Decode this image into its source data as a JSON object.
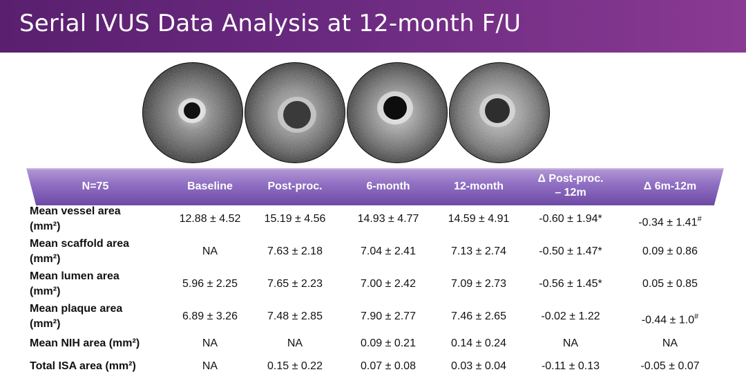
{
  "slide": {
    "title": "Serial IVUS Data Analysis at 12-month F/U"
  },
  "images": [
    {
      "name": "ivus-baseline-image"
    },
    {
      "name": "ivus-post-proc-image"
    },
    {
      "name": "ivus-6-month-image"
    },
    {
      "name": "ivus-12-month-image"
    }
  ],
  "table": {
    "headers": {
      "n": "N=75",
      "baseline": "Baseline",
      "post": "Post-proc.",
      "m6": "6-month",
      "m12": "12-month",
      "delta_post_1": "Δ Post-proc.",
      "delta_post_2": "– 12m",
      "delta_6m": "Δ  6m-12m"
    },
    "rows": [
      {
        "label1": "Mean vessel area",
        "label2": "(mm²)",
        "values": [
          "12.88 ±  4.52",
          "15.19 ± 4.56",
          "14.93 ± 4.77",
          "14.59 ± 4.91",
          "-0.60 ± 1.94*",
          "-0.34 ± 1.41#"
        ]
      },
      {
        "label1": "Mean scaffold area",
        "label2": "(mm²)",
        "values": [
          "NA",
          "7.63 ± 2.18",
          "7.04 ± 2.41",
          "7.13 ± 2.74",
          "-0.50 ± 1.47*",
          "0.09 ± 0.86"
        ]
      },
      {
        "label1": "Mean lumen area",
        "label2": "(mm²)",
        "values": [
          "5.96 ± 2.25",
          "7.65 ± 2.23",
          "7.00 ± 2.42",
          "7.09 ± 2.73",
          "-0.56 ± 1.45*",
          "0.05 ± 0.85"
        ]
      },
      {
        "label1": "Mean plaque area",
        "label2": "(mm²)",
        "values": [
          "6.89 ± 3.26",
          "7.48 ± 2.85",
          "7.90 ± 2.77",
          "7.46 ± 2.65",
          "-0.02 ± 1.22",
          "-0.44 ± 1.0#"
        ]
      },
      {
        "label1": "Mean NIH area (mm²)",
        "label2": "",
        "values": [
          "NA",
          "NA",
          "0.09 ± 0.21",
          "0.14 ± 0.24",
          "NA",
          "NA"
        ]
      },
      {
        "label1": "Total ISA area (mm²)",
        "label2": "",
        "values": [
          "NA",
          "0.15 ± 0.22",
          "0.07 ± 0.08",
          "0.03 ± 0.04",
          "-0.11 ± 0.13",
          "-0.05 ± 0.07"
        ]
      }
    ]
  }
}
